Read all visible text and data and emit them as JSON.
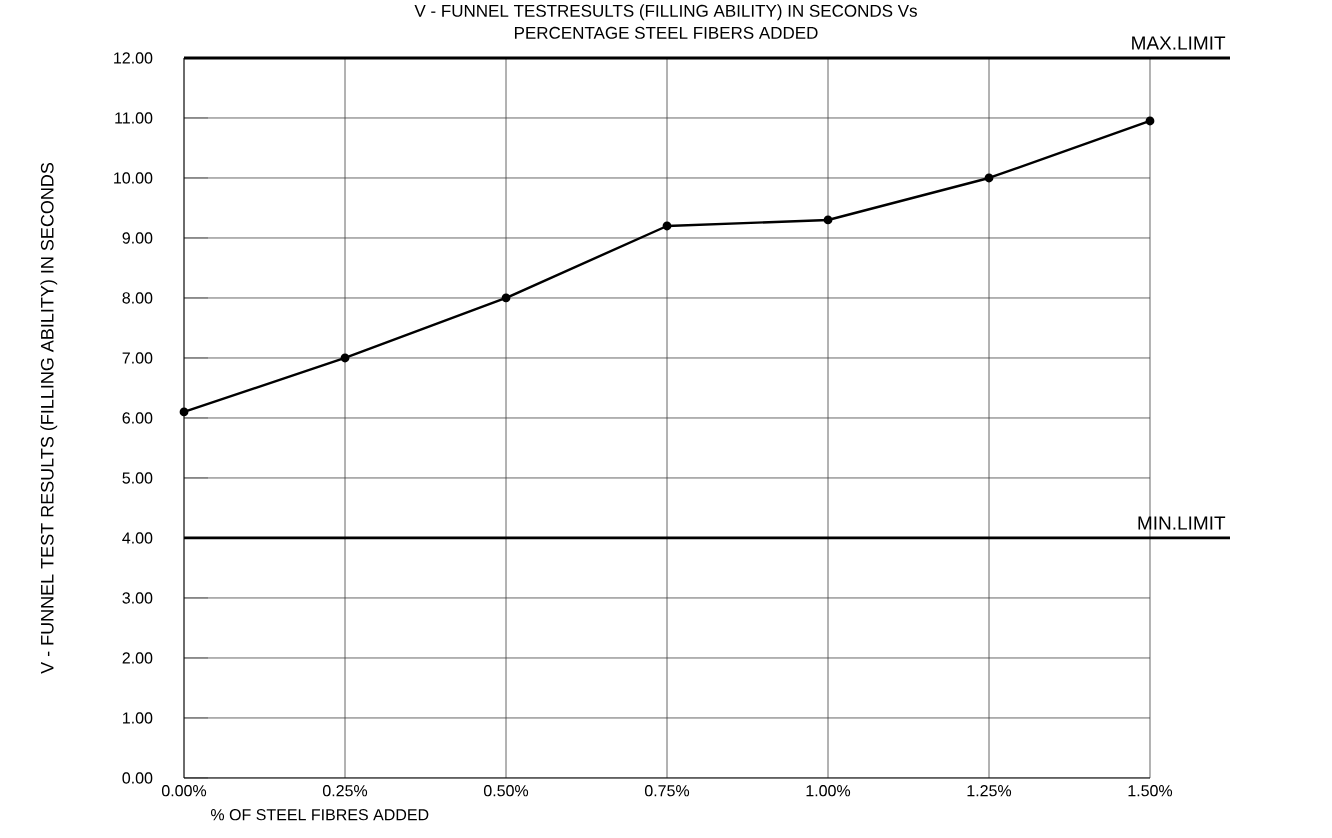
{
  "chart_data": {
    "type": "line",
    "title": "V - FUNNEL TESTRESULTS  (FILLING ABILITY) IN SECONDS  Vs\nPERCENTAGE STEEL FIBERS ADDED",
    "xlabel": "% OF STEEL FIBRES ADDED",
    "ylabel": "V - FUNNEL TEST RESULTS (FILLING ABILITY) IN SECONDS",
    "categories": [
      "0.00%",
      "0.25%",
      "0.50%",
      "0.75%",
      "1.00%",
      "1.25%",
      "1.50%"
    ],
    "series": [
      {
        "color": "#000000",
        "values": [
          6.1,
          7.0,
          8.0,
          9.2,
          9.3,
          10.0,
          10.95
        ]
      }
    ],
    "ylim": [
      0,
      12
    ],
    "yticks": [
      {
        "value": 0,
        "label": "0.00"
      },
      {
        "value": 1,
        "label": "1.00"
      },
      {
        "value": 2,
        "label": "2.00"
      },
      {
        "value": 3,
        "label": "3.00"
      },
      {
        "value": 4,
        "label": "4.00"
      },
      {
        "value": 5,
        "label": "5.00"
      },
      {
        "value": 6,
        "label": "6.00"
      },
      {
        "value": 7,
        "label": "7.00"
      },
      {
        "value": 8,
        "label": "8.00"
      },
      {
        "value": 9,
        "label": "9.00"
      },
      {
        "value": 10,
        "label": "10.00"
      },
      {
        "value": 11,
        "label": "11.00"
      },
      {
        "value": 12,
        "label": "12.00"
      }
    ],
    "ref_lines": [
      {
        "axis": "y",
        "value": 12,
        "label": "MAX.LIMIT",
        "color": "#000000"
      },
      {
        "axis": "y",
        "value": 4,
        "label": "MIN.LIMIT",
        "color": "#000000"
      }
    ],
    "grid": true,
    "marker": "circle",
    "line_style": "solid"
  }
}
